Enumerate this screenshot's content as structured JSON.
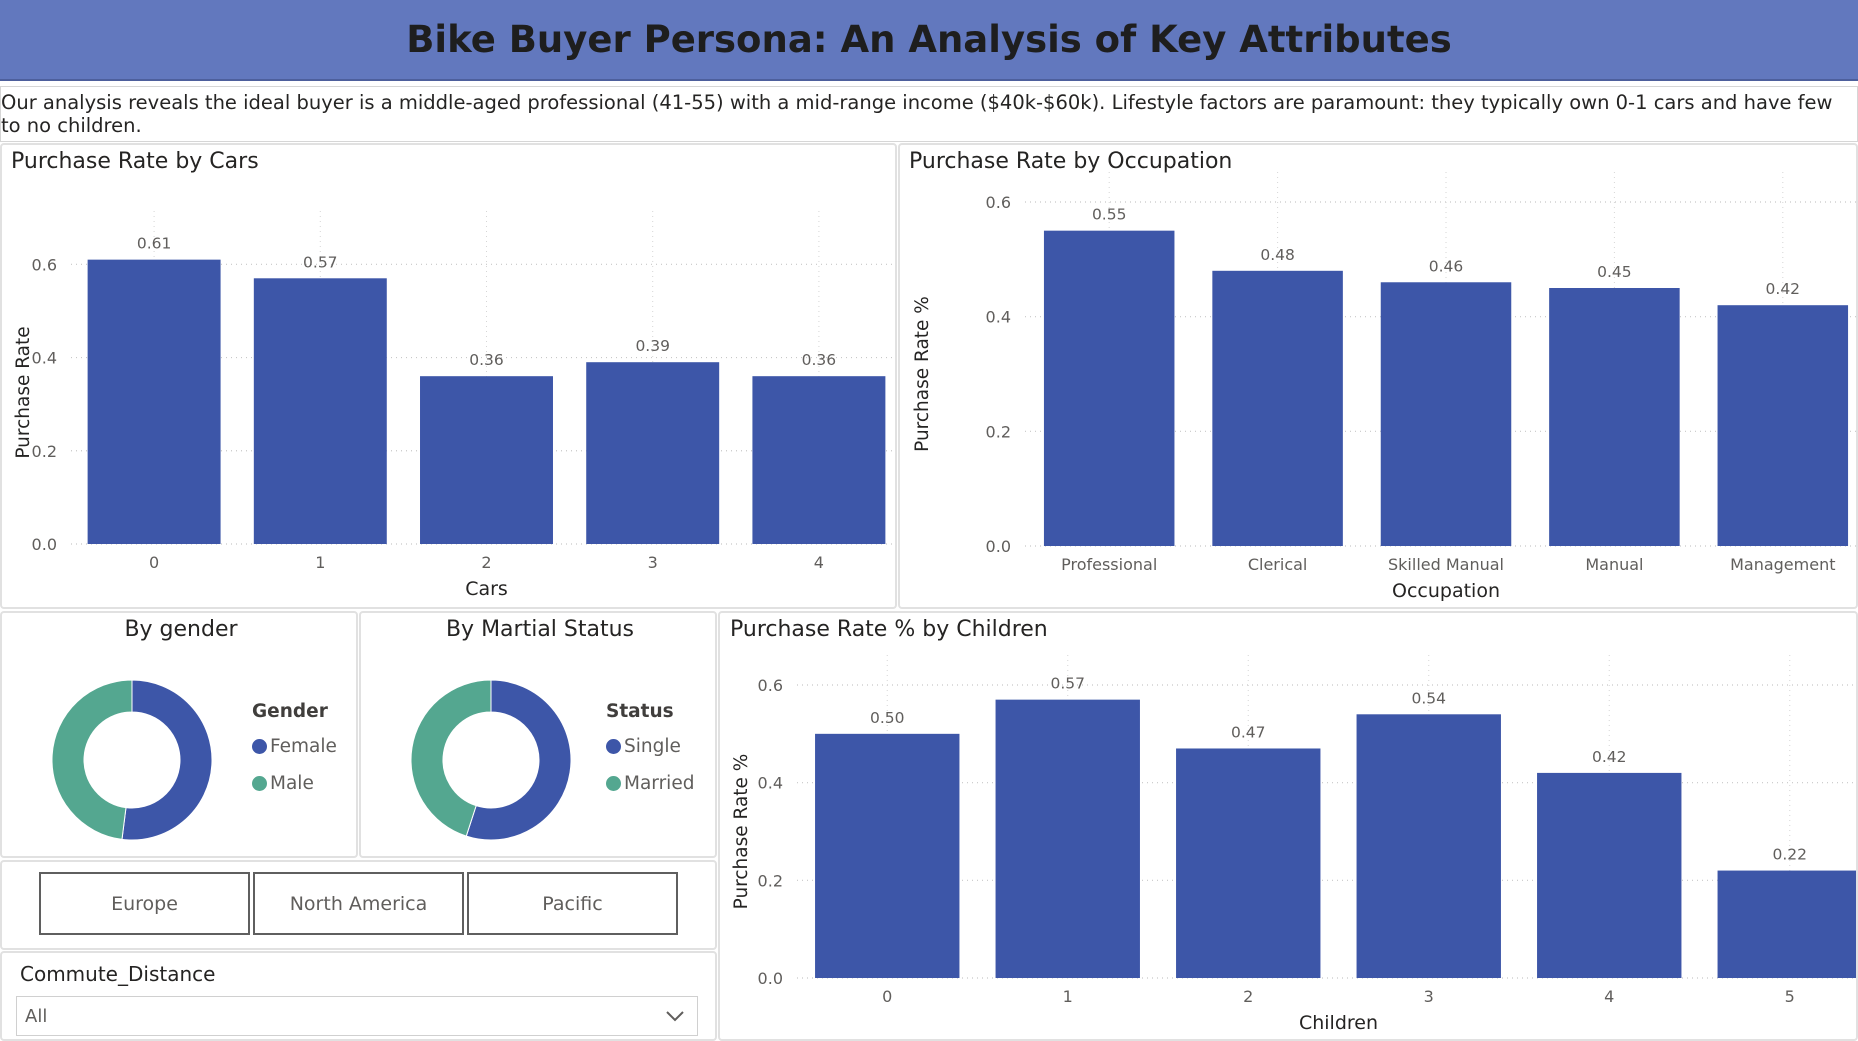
{
  "header": {
    "title": "Bike Buyer Persona: An Analysis of Key Attributes",
    "summary": "Our analysis reveals the ideal buyer is a middle-aged professional (41-55) with a mid-range income ($40k-$60k). Lifestyle factors are paramount: they typically own 0-1 cars and have few to no children."
  },
  "colors": {
    "bar": "#3d56a8",
    "female_single": "#3d56a8",
    "male_married": "#54a790",
    "header_bg": "#6278be"
  },
  "cars_chart": {
    "title": "Purchase Rate by Cars",
    "xlabel": "Cars",
    "ylabel": "Purchase Rate",
    "yticks": [
      "0.0",
      "0.2",
      "0.4",
      "0.6"
    ]
  },
  "occupation_chart": {
    "title": "Purchase Rate by Occupation",
    "xlabel": "Occupation",
    "ylabel": "Purchase Rate %",
    "yticks": [
      "0.0",
      "0.2",
      "0.4",
      "0.6"
    ]
  },
  "children_chart": {
    "title": "Purchase Rate % by Children",
    "xlabel": "Children",
    "ylabel": "Purchase Rate %",
    "yticks": [
      "0.0",
      "0.2",
      "0.4",
      "0.6"
    ]
  },
  "gender_chart": {
    "title": "By gender",
    "legend_title": "Gender",
    "items": [
      "Female",
      "Male"
    ]
  },
  "marital_chart": {
    "title": "By Martial Status",
    "legend_title": "Status",
    "items": [
      "Single",
      "Married"
    ]
  },
  "region_slicer": {
    "options": [
      "Europe",
      "North America",
      "Pacific"
    ]
  },
  "commute_slicer": {
    "label": "Commute_Distance",
    "selected": "All"
  },
  "chart_data": [
    {
      "type": "bar",
      "title": "Purchase Rate by Cars",
      "xlabel": "Cars",
      "ylabel": "Purchase Rate",
      "categories": [
        "0",
        "1",
        "2",
        "3",
        "4"
      ],
      "values": [
        0.61,
        0.57,
        0.36,
        0.39,
        0.36
      ],
      "labels": [
        "0.61",
        "0.57",
        "0.36",
        "0.39",
        "0.36"
      ],
      "ylim": [
        0,
        0.65
      ],
      "grid": true
    },
    {
      "type": "bar",
      "title": "Purchase Rate by Occupation",
      "xlabel": "Occupation",
      "ylabel": "Purchase Rate %",
      "categories": [
        "Professional",
        "Clerical",
        "Skilled Manual",
        "Manual",
        "Management"
      ],
      "values": [
        0.55,
        0.48,
        0.46,
        0.45,
        0.42
      ],
      "labels": [
        "0.55",
        "0.48",
        "0.46",
        "0.45",
        "0.42"
      ],
      "ylim": [
        0,
        0.6
      ],
      "grid": true
    },
    {
      "type": "bar",
      "title": "Purchase Rate % by Children",
      "xlabel": "Children",
      "ylabel": "Purchase Rate %",
      "categories": [
        "0",
        "1",
        "2",
        "3",
        "4",
        "5"
      ],
      "values": [
        0.5,
        0.57,
        0.47,
        0.54,
        0.42,
        0.22
      ],
      "labels": [
        "0.50",
        "0.57",
        "0.47",
        "0.54",
        "0.42",
        "0.22"
      ],
      "ylim": [
        0,
        0.6
      ],
      "grid": true
    },
    {
      "type": "pie",
      "title": "By gender",
      "categories": [
        "Female",
        "Male"
      ],
      "values": [
        0.52,
        0.48
      ]
    },
    {
      "type": "pie",
      "title": "By Martial Status",
      "categories": [
        "Single",
        "Married"
      ],
      "values": [
        0.55,
        0.45
      ]
    }
  ]
}
